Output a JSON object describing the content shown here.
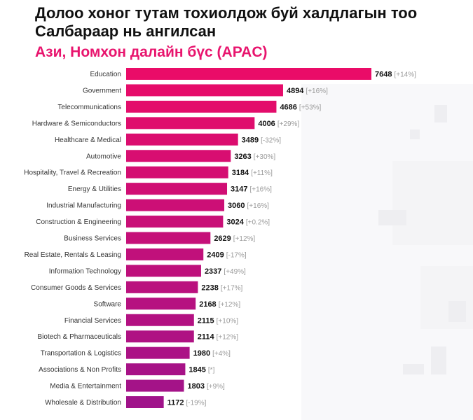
{
  "title": "Долоо хоног тутам тохиолдож буй халдлагын тоо Салбараар нь ангилсан",
  "subtitle": "Ази, Номхон далайн бүс (APAC)",
  "colors": {
    "accent": "#e8156e",
    "bar_start": "#ea0c68",
    "bar_end": "#a0138a",
    "title": "#111111",
    "change": "#9a9a9a"
  },
  "chart_data": {
    "type": "bar",
    "orientation": "horizontal",
    "title": "Долоо хоног тутам тохиолдож буй халдлагын тоо Салбараар нь ангилсан",
    "subtitle": "Ази, Номхон далайн бүс (APAC)",
    "xlim": [
      0,
      7648
    ],
    "categories": [
      "Education",
      "Government",
      "Telecommunications",
      "Hardware & Semiconductors",
      "Healthcare & Medical",
      "Automotive",
      "Hospitality, Travel & Recreation",
      "Energy & Utilities",
      "Industrial Manufacturing",
      "Construction & Engineering",
      "Business Services",
      "Real Estate, Rentals & Leasing",
      "Information Technology",
      "Consumer Goods & Services",
      "Software",
      "Financial Services",
      "Biotech & Pharmaceuticals",
      "Transportation & Logistics",
      "Associations & Non Profits",
      "Media & Entertainment",
      "Wholesale & Distribution"
    ],
    "values": [
      7648,
      4894,
      4686,
      4006,
      3489,
      3263,
      3184,
      3147,
      3060,
      3024,
      2629,
      2409,
      2337,
      2238,
      2168,
      2115,
      2114,
      1980,
      1845,
      1803,
      1172
    ],
    "changes": [
      "[+14%]",
      "[+16%]",
      "[+53%]",
      "[+29%]",
      "[-32%]",
      "[+30%]",
      "[+11%]",
      "[+16%]",
      "[+16%]",
      "[+0.2%]",
      "[+12%]",
      "[-17%]",
      "[+49%]",
      "[+17%]",
      "[+12%]",
      "[+10%]",
      "[+12%]",
      "[+4%]",
      "[*]",
      "[+9%]",
      "[-19%]"
    ]
  }
}
